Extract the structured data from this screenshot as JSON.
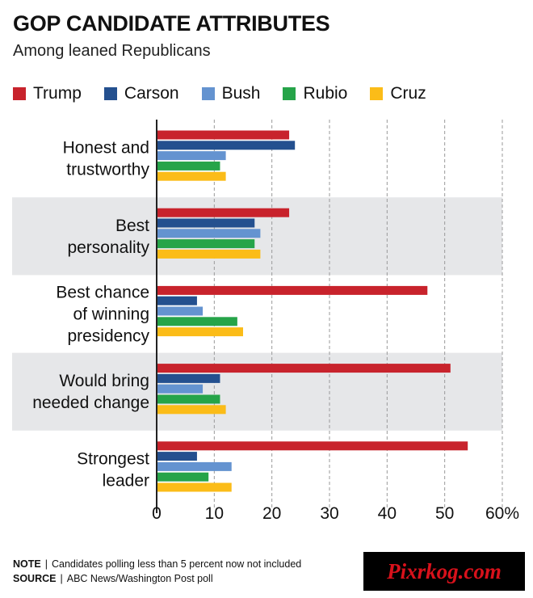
{
  "header": {
    "title": "GOP CANDIDATE ATTRIBUTES",
    "subtitle": "Among leaned Republicans"
  },
  "chart_data": {
    "type": "bar",
    "orientation": "horizontal",
    "categories": [
      [
        "Honest and",
        "trustworthy"
      ],
      [
        "Best",
        "personality"
      ],
      [
        "Best chance",
        "of winning",
        "presidency"
      ],
      [
        "Would bring",
        "needed change"
      ],
      [
        "Strongest",
        "leader"
      ]
    ],
    "series": [
      {
        "name": "Trump",
        "color": "#c8232c",
        "values": [
          23,
          23,
          47,
          51,
          54
        ]
      },
      {
        "name": "Carson",
        "color": "#24508f",
        "values": [
          24,
          17,
          7,
          11,
          7
        ]
      },
      {
        "name": "Bush",
        "color": "#6493d0",
        "values": [
          12,
          18,
          8,
          8,
          13
        ]
      },
      {
        "name": "Rubio",
        "color": "#26a449",
        "values": [
          11,
          17,
          14,
          11,
          9
        ]
      },
      {
        "name": "Cruz",
        "color": "#fbbc18",
        "values": [
          12,
          18,
          15,
          12,
          13
        ]
      }
    ],
    "xlim": [
      0,
      60
    ],
    "xticks": [
      "0",
      "10",
      "20",
      "30",
      "40",
      "50",
      "60%"
    ],
    "xtick_values": [
      0,
      10,
      20,
      30,
      40,
      50,
      60
    ],
    "grid": true,
    "legend_position": "top"
  },
  "footnotes": {
    "note_label": "NOTE",
    "note_text": "Candidates polling less than 5 percent now not included",
    "source_label": "SOURCE",
    "source_text": "ABC News/Washington Post poll"
  },
  "watermark": {
    "text": "Pixrkog.com",
    "bg_color": "#000000",
    "text_color": "#d8111b"
  }
}
